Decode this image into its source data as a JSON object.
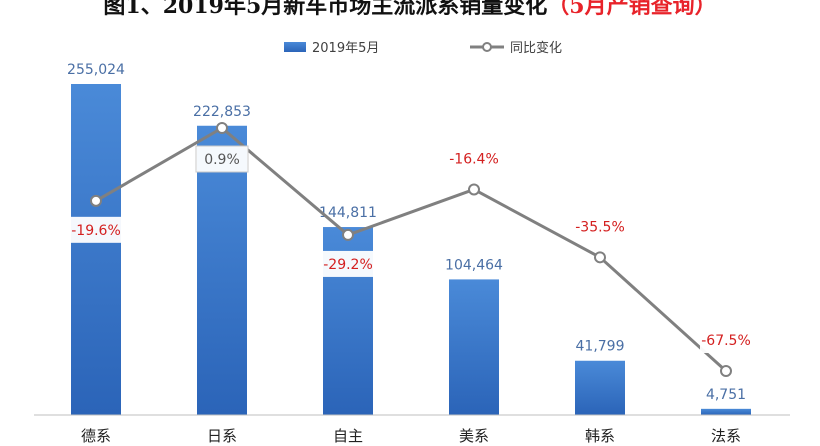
{
  "title": {
    "main": "图1、2019年5月新车市场主流派系销量变化",
    "suffix": "（5月产销查询）"
  },
  "legend": {
    "bar_series": "2019年5月",
    "line_series": "同比变化"
  },
  "colors": {
    "bar_top": "#4a8ad8",
    "bar_bottom": "#2b64b8",
    "line": "#808080",
    "pct_negative": "#d42020",
    "pct_positive": "#555555",
    "title_accent": "#e8232a"
  },
  "chart_data": {
    "type": "bar",
    "categories": [
      "德系",
      "日系",
      "自主",
      "美系",
      "韩系",
      "法系"
    ],
    "series": [
      {
        "name": "2019年5月",
        "type": "bar",
        "values": [
          255024,
          222853,
          144811,
          104464,
          41799,
          4751
        ],
        "labels": [
          "255,024",
          "222,853",
          "144,811",
          "104,464",
          "41,799",
          "4,751"
        ]
      },
      {
        "name": "同比变化",
        "type": "line",
        "values": [
          -19.6,
          0.9,
          -29.2,
          -16.4,
          -35.5,
          -67.5
        ],
        "labels": [
          "-19.6%",
          "0.9%",
          "-29.2%",
          "-16.4%",
          "-35.5%",
          "-67.5%"
        ]
      }
    ],
    "grid": false,
    "legend_position": "top-center"
  }
}
